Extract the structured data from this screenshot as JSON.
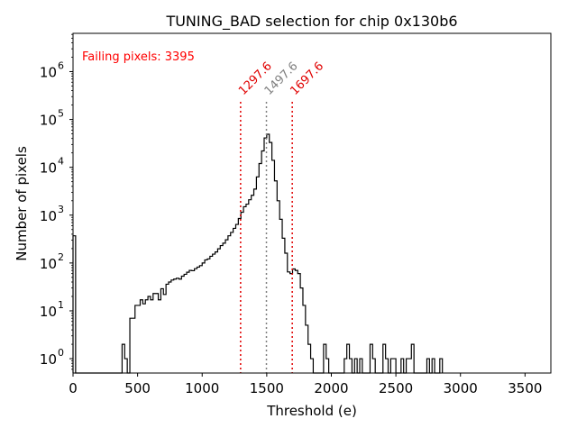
{
  "chart_data": {
    "type": "histogram",
    "title": "TUNING_BAD selection for chip 0x130b6",
    "xlabel": "Threshold (e)",
    "ylabel": "Number of pixels",
    "xlim": [
      0,
      3700
    ],
    "ylog_lim": [
      -0.3,
      6.8
    ],
    "xticks": [
      0,
      500,
      1000,
      1500,
      2000,
      2500,
      3000,
      3500
    ],
    "yticks": [
      {
        "base": "10",
        "exp": "0",
        "value": 1
      },
      {
        "base": "10",
        "exp": "1",
        "value": 10
      },
      {
        "base": "10",
        "exp": "2",
        "value": 100
      },
      {
        "base": "10",
        "exp": "3",
        "value": 1000
      },
      {
        "base": "10",
        "exp": "4",
        "value": 10000
      },
      {
        "base": "10",
        "exp": "5",
        "value": 100000
      },
      {
        "base": "10",
        "exp": "6",
        "value": 1000000
      }
    ],
    "annotation": {
      "text": "Failing pixels: 3395",
      "color": "#ff0000"
    },
    "vlines": [
      {
        "x": 1297.6,
        "label": "1297.6",
        "color": "#e00000"
      },
      {
        "x": 1497.6,
        "label": "1497.6",
        "color": "#808080"
      },
      {
        "x": 1697.6,
        "label": "1697.6",
        "color": "#e00000"
      }
    ],
    "bins": [
      [
        0,
        20,
        370
      ],
      [
        20,
        40,
        0
      ],
      [
        40,
        60,
        0
      ],
      [
        60,
        80,
        0
      ],
      [
        80,
        100,
        0
      ],
      [
        100,
        120,
        0
      ],
      [
        120,
        140,
        0
      ],
      [
        140,
        160,
        0
      ],
      [
        160,
        180,
        0
      ],
      [
        180,
        200,
        0
      ],
      [
        200,
        220,
        0
      ],
      [
        220,
        240,
        0
      ],
      [
        240,
        260,
        0
      ],
      [
        260,
        280,
        0
      ],
      [
        280,
        300,
        0
      ],
      [
        300,
        320,
        0
      ],
      [
        320,
        340,
        0
      ],
      [
        340,
        360,
        0
      ],
      [
        360,
        380,
        0
      ],
      [
        380,
        400,
        2
      ],
      [
        400,
        420,
        1
      ],
      [
        420,
        440,
        0
      ],
      [
        440,
        460,
        7
      ],
      [
        460,
        480,
        7
      ],
      [
        480,
        500,
        13
      ],
      [
        500,
        520,
        13
      ],
      [
        520,
        540,
        17
      ],
      [
        540,
        560,
        14
      ],
      [
        560,
        580,
        17
      ],
      [
        580,
        600,
        20
      ],
      [
        600,
        620,
        17
      ],
      [
        620,
        640,
        23
      ],
      [
        640,
        660,
        23
      ],
      [
        660,
        680,
        17
      ],
      [
        680,
        700,
        29
      ],
      [
        700,
        720,
        22
      ],
      [
        720,
        740,
        36
      ],
      [
        740,
        760,
        40
      ],
      [
        760,
        780,
        44
      ],
      [
        780,
        800,
        46
      ],
      [
        800,
        820,
        48
      ],
      [
        820,
        840,
        46
      ],
      [
        840,
        860,
        53
      ],
      [
        860,
        880,
        58
      ],
      [
        880,
        900,
        64
      ],
      [
        900,
        920,
        70
      ],
      [
        920,
        940,
        69
      ],
      [
        940,
        960,
        76
      ],
      [
        960,
        980,
        82
      ],
      [
        980,
        1000,
        88
      ],
      [
        1000,
        1020,
        100
      ],
      [
        1020,
        1040,
        116
      ],
      [
        1040,
        1060,
        122
      ],
      [
        1060,
        1080,
        138
      ],
      [
        1080,
        1100,
        153
      ],
      [
        1100,
        1120,
        170
      ],
      [
        1120,
        1140,
        198
      ],
      [
        1140,
        1160,
        231
      ],
      [
        1160,
        1180,
        260
      ],
      [
        1180,
        1200,
        305
      ],
      [
        1200,
        1220,
        370
      ],
      [
        1220,
        1240,
        436
      ],
      [
        1240,
        1260,
        530
      ],
      [
        1260,
        1280,
        640
      ],
      [
        1280,
        1300,
        850
      ],
      [
        1300,
        1320,
        1150
      ],
      [
        1320,
        1340,
        1500
      ],
      [
        1340,
        1360,
        1700
      ],
      [
        1360,
        1380,
        2100
      ],
      [
        1380,
        1400,
        2600
      ],
      [
        1400,
        1420,
        3500
      ],
      [
        1420,
        1440,
        6300
      ],
      [
        1440,
        1460,
        12000
      ],
      [
        1460,
        1480,
        22000
      ],
      [
        1480,
        1500,
        41000
      ],
      [
        1500,
        1520,
        49000
      ],
      [
        1520,
        1540,
        33000
      ],
      [
        1540,
        1560,
        14000
      ],
      [
        1560,
        1580,
        5200
      ],
      [
        1580,
        1600,
        2000
      ],
      [
        1600,
        1620,
        820
      ],
      [
        1620,
        1640,
        330
      ],
      [
        1640,
        1660,
        160
      ],
      [
        1660,
        1680,
        65
      ],
      [
        1680,
        1700,
        60
      ],
      [
        1700,
        1720,
        75
      ],
      [
        1720,
        1740,
        70
      ],
      [
        1740,
        1760,
        60
      ],
      [
        1760,
        1780,
        30
      ],
      [
        1780,
        1800,
        13
      ],
      [
        1800,
        1820,
        5
      ],
      [
        1820,
        1840,
        2
      ],
      [
        1840,
        1860,
        1
      ],
      [
        1860,
        1880,
        0
      ],
      [
        1880,
        1900,
        0
      ],
      [
        1900,
        1920,
        0
      ],
      [
        1920,
        1940,
        0
      ],
      [
        1940,
        1960,
        2
      ],
      [
        1960,
        1980,
        1
      ],
      [
        1980,
        2000,
        0
      ],
      [
        2000,
        2020,
        0
      ],
      [
        2020,
        2040,
        0
      ],
      [
        2040,
        2060,
        0
      ],
      [
        2060,
        2080,
        0
      ],
      [
        2080,
        2100,
        0
      ],
      [
        2100,
        2120,
        1
      ],
      [
        2120,
        2140,
        2
      ],
      [
        2140,
        2160,
        1
      ],
      [
        2160,
        2180,
        0
      ],
      [
        2180,
        2200,
        1
      ],
      [
        2200,
        2220,
        0
      ],
      [
        2220,
        2240,
        1
      ],
      [
        2240,
        2260,
        0
      ],
      [
        2260,
        2280,
        0
      ],
      [
        2280,
        2300,
        0
      ],
      [
        2300,
        2320,
        2
      ],
      [
        2320,
        2340,
        1
      ],
      [
        2340,
        2360,
        0
      ],
      [
        2360,
        2380,
        0
      ],
      [
        2380,
        2400,
        0
      ],
      [
        2400,
        2420,
        2
      ],
      [
        2420,
        2440,
        1
      ],
      [
        2440,
        2460,
        0
      ],
      [
        2460,
        2480,
        1
      ],
      [
        2480,
        2500,
        1
      ],
      [
        2500,
        2520,
        0
      ],
      [
        2520,
        2540,
        0
      ],
      [
        2540,
        2560,
        1
      ],
      [
        2560,
        2580,
        0
      ],
      [
        2580,
        2600,
        1
      ],
      [
        2600,
        2620,
        1
      ],
      [
        2620,
        2640,
        2
      ],
      [
        2640,
        2660,
        0
      ],
      [
        2660,
        2680,
        0
      ],
      [
        2680,
        2700,
        0
      ],
      [
        2700,
        2720,
        0
      ],
      [
        2720,
        2740,
        0
      ],
      [
        2740,
        2760,
        1
      ],
      [
        2760,
        2780,
        0
      ],
      [
        2780,
        2800,
        1
      ],
      [
        2800,
        2820,
        0
      ],
      [
        2820,
        2840,
        0
      ],
      [
        2840,
        2860,
        1
      ]
    ]
  }
}
